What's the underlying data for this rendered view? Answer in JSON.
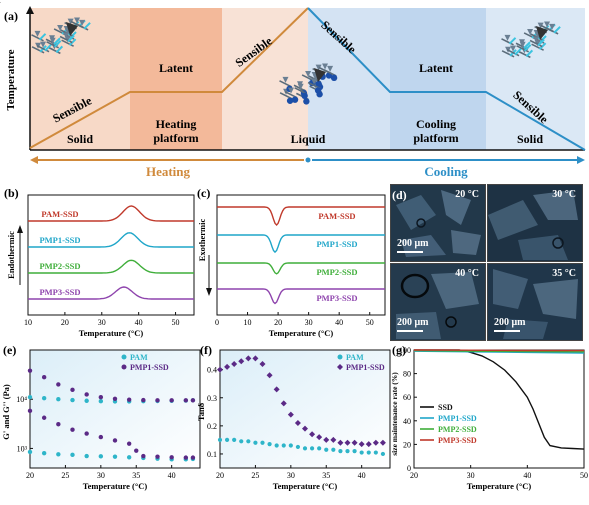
{
  "panel_a": {
    "label": "(a)",
    "ylabel": "Temperature",
    "zones": [
      {
        "name": "Solid",
        "stage": "Sensible",
        "color": "#f7d9c7"
      },
      {
        "name": "Heating\nplatform",
        "stage": "Latent",
        "color": "#f3b99a"
      },
      {
        "name": "Liquid",
        "stage": "Sensible",
        "color": "#f8e2d6"
      },
      {
        "name": "",
        "stage": "Sensible",
        "color": "#d4e3f3"
      },
      {
        "name": "Cooling\nplatform",
        "stage": "Latent",
        "color": "#bfd6ee"
      },
      {
        "name": "Solid",
        "stage": "Sensible",
        "color": "#dbe8f5"
      }
    ],
    "heating_label": "Heating",
    "cooling_label": "Cooling",
    "heating_color": "#d08a3c",
    "cooling_color": "#2d8fc7"
  },
  "panel_d": {
    "label": "(d)",
    "images": [
      {
        "temp": "20 °C",
        "scale": "200 μm"
      },
      {
        "temp": "30 °C",
        "scale": ""
      },
      {
        "temp": "40 °C",
        "scale": "200 μm"
      },
      {
        "temp": "35 °C",
        "scale": "200 μm"
      }
    ]
  },
  "chart_data": [
    {
      "id": "b",
      "label": "(b)",
      "type": "line",
      "xlabel": "Temperature (°C)",
      "ylabel": "Endothermic",
      "xlim": [
        10,
        55
      ],
      "xticks": [
        10,
        20,
        30,
        40,
        50
      ],
      "series": [
        {
          "name": "PAM-SSD",
          "color": "#c0392b",
          "peak": 38,
          "height": 1.0
        },
        {
          "name": "PMP1-SSD",
          "color": "#1fa6c9",
          "peak": 37.5,
          "height": 0.95
        },
        {
          "name": "PMP2-SSD",
          "color": "#3fae3a",
          "peak": 38,
          "height": 0.85
        },
        {
          "name": "PMP3-SSD",
          "color": "#8e44ad",
          "peak": 36,
          "height": 0.8
        }
      ]
    },
    {
      "id": "c",
      "label": "(c)",
      "type": "line",
      "xlabel": "Temperature (°C)",
      "ylabel": "Exothermic",
      "xlim": [
        0,
        55
      ],
      "xticks": [
        0,
        10,
        20,
        30,
        40,
        50
      ],
      "series": [
        {
          "name": "PAM-SSD",
          "color": "#c0392b",
          "peak": 19.5,
          "depth": 1.0
        },
        {
          "name": "PMP1-SSD",
          "color": "#1fa6c9",
          "peak": 19,
          "depth": 0.95
        },
        {
          "name": "PMP2-SSD",
          "color": "#3fae3a",
          "peak": 19.5,
          "depth": 0.6
        },
        {
          "name": "PMP3-SSD",
          "color": "#8e44ad",
          "peak": 19,
          "depth": 0.8
        }
      ]
    },
    {
      "id": "e",
      "label": "(e)",
      "type": "scatter",
      "xlabel": "Temperature (°C)",
      "ylabel": "G' and G'' (Pa)",
      "xlim": [
        20,
        44
      ],
      "xticks": [
        20,
        25,
        30,
        35,
        40
      ],
      "yscale": "log",
      "ylim": [
        400,
        100000
      ],
      "yticks": [
        1000,
        10000
      ],
      "ytick_labels": [
        "10³",
        "10⁴"
      ],
      "legend": "top-right",
      "series": [
        {
          "name": "PAM",
          "color": "#2eb5c9",
          "marker": "circle",
          "x": [
            20,
            22,
            24,
            26,
            28,
            30,
            32,
            34,
            36,
            38,
            40,
            42,
            43
          ],
          "y": [
            11000,
            10500,
            10000,
            9600,
            9300,
            9100,
            9000,
            9000,
            9100,
            9200,
            9300,
            9400,
            9500
          ]
        },
        {
          "name": "",
          "color": "#2eb5c9",
          "marker": "circle",
          "x": [
            20,
            22,
            24,
            26,
            28,
            30,
            32,
            34,
            36,
            38,
            40,
            42,
            43
          ],
          "y": [
            850,
            800,
            760,
            740,
            700,
            690,
            680,
            660,
            640,
            620,
            600,
            600,
            610
          ]
        },
        {
          "name": "PMP1-SSD",
          "color": "#5b2a86",
          "marker": "circle",
          "x": [
            20,
            22,
            24,
            26,
            28,
            30,
            32,
            34,
            36,
            38,
            40,
            42,
            43
          ],
          "y": [
            38000,
            28000,
            20000,
            15500,
            12500,
            11000,
            10200,
            9800,
            9600,
            9500,
            9500,
            9500,
            9500
          ]
        },
        {
          "name": "",
          "color": "#5b2a86",
          "marker": "circle",
          "x": [
            20,
            22,
            24,
            26,
            28,
            30,
            32,
            34,
            35,
            36,
            38,
            40,
            42,
            43
          ],
          "y": [
            5800,
            4200,
            3100,
            2400,
            2000,
            1700,
            1450,
            1250,
            900,
            700,
            680,
            660,
            650,
            650
          ]
        }
      ]
    },
    {
      "id": "f",
      "label": "(f)",
      "type": "scatter",
      "xlabel": "Temperature (°C)",
      "ylabel": "Tanδ",
      "xlim": [
        20,
        44
      ],
      "xticks": [
        20,
        25,
        30,
        35,
        40
      ],
      "ylim": [
        0.05,
        0.47
      ],
      "yticks": [
        0.1,
        0.2,
        0.3,
        0.4
      ],
      "legend": "top-right",
      "series": [
        {
          "name": "PAM",
          "color": "#2eb5c9",
          "marker": "circle",
          "x": [
            20,
            21,
            22,
            23,
            24,
            25,
            26,
            27,
            28,
            29,
            30,
            31,
            32,
            33,
            34,
            35,
            36,
            37,
            38,
            39,
            40,
            41,
            42,
            43
          ],
          "y": [
            0.15,
            0.15,
            0.15,
            0.145,
            0.145,
            0.14,
            0.14,
            0.135,
            0.13,
            0.13,
            0.13,
            0.125,
            0.12,
            0.12,
            0.12,
            0.115,
            0.115,
            0.11,
            0.11,
            0.11,
            0.105,
            0.105,
            0.105,
            0.1
          ]
        },
        {
          "name": "PMP1-SSD",
          "color": "#5b2a86",
          "marker": "diamond",
          "x": [
            20,
            21,
            22,
            23,
            24,
            25,
            26,
            27,
            28,
            29,
            30,
            31,
            32,
            33,
            34,
            35,
            36,
            37,
            38,
            39,
            40,
            41,
            42,
            43
          ],
          "y": [
            0.4,
            0.41,
            0.42,
            0.43,
            0.44,
            0.44,
            0.42,
            0.38,
            0.33,
            0.28,
            0.24,
            0.21,
            0.19,
            0.17,
            0.16,
            0.15,
            0.15,
            0.14,
            0.14,
            0.14,
            0.135,
            0.135,
            0.14,
            0.14
          ]
        }
      ]
    },
    {
      "id": "g",
      "label": "(g)",
      "type": "line",
      "xlabel": "Temperature (°C)",
      "ylabel": "size maintenance rate (%)",
      "xlim": [
        20,
        50
      ],
      "xticks": [
        20,
        30,
        40,
        50
      ],
      "ylim": [
        0,
        100
      ],
      "yticks": [
        0,
        20,
        40,
        60,
        80,
        100
      ],
      "legend": "left",
      "series": [
        {
          "name": "SSD",
          "color": "#111111",
          "x": [
            20,
            28,
            30,
            32,
            34,
            36,
            38,
            40,
            41,
            42,
            43,
            44,
            46,
            48,
            50
          ],
          "y": [
            100,
            100,
            98,
            95,
            90,
            83,
            73,
            60,
            50,
            38,
            26,
            19,
            17,
            16.5,
            16
          ]
        },
        {
          "name": "PMP1-SSD",
          "color": "#1fa6c9",
          "x": [
            20,
            30,
            40,
            50
          ],
          "y": [
            99,
            98.5,
            98,
            97.5
          ]
        },
        {
          "name": "PMP2-SSD",
          "color": "#3fae3a",
          "x": [
            20,
            30,
            40,
            50
          ],
          "y": [
            99.5,
            99,
            98.7,
            98.5
          ]
        },
        {
          "name": "PMP3-SSD",
          "color": "#c0392b",
          "x": [
            20,
            30,
            40,
            50
          ],
          "y": [
            100,
            99.8,
            99.6,
            99.5
          ]
        }
      ]
    }
  ]
}
